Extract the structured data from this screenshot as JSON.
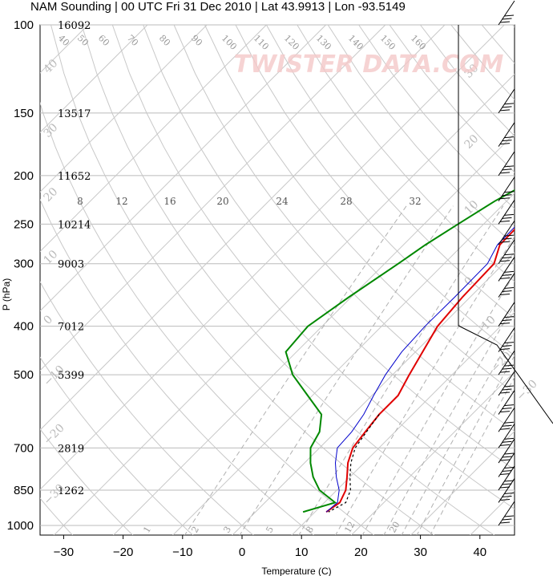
{
  "chart_data": {
    "type": "line",
    "title": "NAM Sounding | 00 UTC Fri 31 Dec 2010 | Lat 43.9913 | Lon -93.5149",
    "xlabel": "Temperature (C)",
    "ylabel": "P (hPa)",
    "x_ticks": [
      "−30",
      "−20",
      "−10",
      "0",
      "10",
      "20",
      "30",
      "40"
    ],
    "x_tick_values": [
      -30,
      -20,
      -10,
      0,
      10,
      20,
      30,
      40
    ],
    "p_ticks": [
      "100",
      "150",
      "200",
      "250",
      "300",
      "400",
      "500",
      "700",
      "850",
      "1000"
    ],
    "p_tick_values": [
      100,
      150,
      200,
      250,
      300,
      400,
      500,
      700,
      850,
      1000
    ],
    "height_labels": [
      {
        "p": 100,
        "text": "16092"
      },
      {
        "p": 150,
        "text": "13517"
      },
      {
        "p": 200,
        "text": "11652"
      },
      {
        "p": 250,
        "text": "10214"
      },
      {
        "p": 300,
        "text": "9003"
      },
      {
        "p": 400,
        "text": "7012"
      },
      {
        "p": 500,
        "text": "5399"
      },
      {
        "p": 700,
        "text": "2819"
      },
      {
        "p": 850,
        "text": "1262"
      }
    ],
    "mixing_ratio_labels": [
      "8",
      "12",
      "16",
      "20",
      "24",
      "28",
      "32"
    ],
    "isotherm_labels": [
      "40",
      "50",
      "60",
      "70",
      "80",
      "90",
      "100",
      "110",
      "120",
      "130",
      "140",
      "150",
      "160"
    ],
    "dry_adiabat_labels": [
      "40",
      "30",
      "20",
      "10",
      "0",
      "−10",
      "−20",
      "−30",
      "30",
      "20",
      "10",
      "0",
      "−10",
      "−20",
      "−30"
    ],
    "moist_labels": [
      "1",
      "2",
      "3",
      "5",
      "8",
      "12",
      "20"
    ],
    "series": [
      {
        "name": "Temperature",
        "color": "#e00000",
        "points": [
          [
            20.0,
            100
          ],
          [
            18.8,
            125
          ],
          [
            16.3,
            150
          ],
          [
            8.9,
            175
          ],
          [
            1.1,
            200
          ],
          [
            -2.8,
            225
          ],
          [
            -3.9,
            250
          ],
          [
            -3.8,
            275
          ],
          [
            -1.6,
            300
          ],
          [
            -1.3,
            350
          ],
          [
            -0.6,
            400
          ],
          [
            1.2,
            450
          ],
          [
            2.8,
            500
          ],
          [
            4.4,
            550
          ],
          [
            4.4,
            600
          ],
          [
            5.0,
            650
          ],
          [
            5.6,
            700
          ],
          [
            7.3,
            750
          ],
          [
            9.5,
            800
          ],
          [
            11.5,
            850
          ],
          [
            12.6,
            900
          ],
          [
            11.9,
            940
          ]
        ]
      },
      {
        "name": "Virtual Temperature",
        "color": "#000000",
        "dashed": true,
        "points": [
          [
            4.4,
            600
          ],
          [
            5.2,
            650
          ],
          [
            6.0,
            700
          ],
          [
            7.8,
            750
          ],
          [
            10.0,
            800
          ],
          [
            12.3,
            850
          ],
          [
            13.6,
            900
          ],
          [
            12.3,
            940
          ]
        ]
      },
      {
        "name": "Dewpoint",
        "color": "#0000cc",
        "points": [
          [
            18.7,
            100
          ],
          [
            17.3,
            125
          ],
          [
            15.0,
            150
          ],
          [
            7.5,
            175
          ],
          [
            0.4,
            200
          ],
          [
            -3.2,
            225
          ],
          [
            -4.3,
            250
          ],
          [
            -4.2,
            275
          ],
          [
            -2.7,
            300
          ],
          [
            -2.6,
            350
          ],
          [
            -2.7,
            400
          ],
          [
            -2.3,
            450
          ],
          [
            -1.2,
            500
          ],
          [
            0.3,
            550
          ],
          [
            1.8,
            600
          ],
          [
            2.7,
            650
          ],
          [
            3.0,
            700
          ],
          [
            5.2,
            750
          ],
          [
            7.7,
            800
          ],
          [
            10.4,
            850
          ],
          [
            12.2,
            900
          ],
          [
            11.9,
            940
          ]
        ]
      },
      {
        "name": "Wet-bulb",
        "color": "#008800",
        "points": [
          [
            -5.4,
            100
          ],
          [
            -5.6,
            125
          ],
          [
            -5.5,
            150
          ],
          [
            -6.6,
            175
          ],
          [
            -8.5,
            200
          ],
          [
            -12.0,
            225
          ],
          [
            -14.3,
            250
          ],
          [
            -16.3,
            275
          ],
          [
            -17.7,
            300
          ],
          [
            -20.4,
            350
          ],
          [
            -22.4,
            400
          ],
          [
            -21.8,
            450
          ],
          [
            -16.8,
            500
          ],
          [
            -10.8,
            550
          ],
          [
            -5.3,
            600
          ],
          [
            -2.7,
            650
          ],
          [
            -1.5,
            700
          ],
          [
            1.0,
            750
          ],
          [
            3.8,
            800
          ],
          [
            7.1,
            850
          ],
          [
            11.8,
            900
          ],
          [
            8.0,
            940
          ]
        ]
      }
    ],
    "wind_profile": [
      {
        "p": 100
      },
      {
        "p": 150
      },
      {
        "p": 175
      },
      {
        "p": 200
      },
      {
        "p": 225
      },
      {
        "p": 250
      },
      {
        "p": 275
      },
      {
        "p": 300
      },
      {
        "p": 325
      },
      {
        "p": 350
      },
      {
        "p": 400
      },
      {
        "p": 450
      },
      {
        "p": 500
      },
      {
        "p": 550
      },
      {
        "p": 600
      },
      {
        "p": 650
      },
      {
        "p": 700
      },
      {
        "p": 750
      },
      {
        "p": 800
      },
      {
        "p": 850
      },
      {
        "p": 900
      },
      {
        "p": 1000
      }
    ],
    "hodograph_line_color": "#000000",
    "watermark": "TWISTER DATA.COM",
    "grid": true
  }
}
